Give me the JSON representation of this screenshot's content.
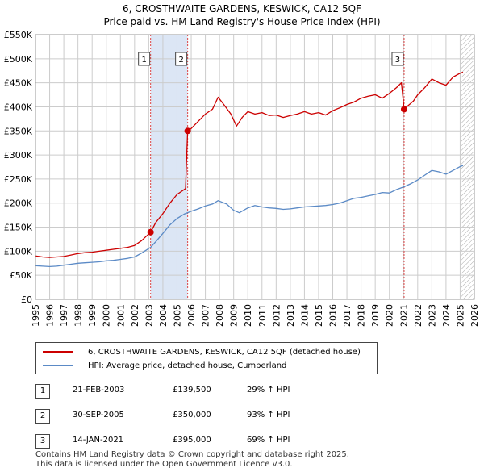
{
  "header": {
    "line1": "6, CROSTHWAITE GARDENS, KESWICK, CA12 5QF",
    "line2": "Price paid vs. HM Land Registry's House Price Index (HPI)"
  },
  "colors": {
    "red": "#cc0000",
    "blue": "#5b8ac6",
    "shade": "#dce6f5",
    "grid": "#cccccc"
  },
  "legend": {
    "red_label": "6, CROSTHWAITE GARDENS, KESWICK, CA12 5QF (detached house)",
    "blue_label": "HPI: Average price, detached house, Cumberland"
  },
  "transactions": [
    {
      "num": "1",
      "date": "21-FEB-2003",
      "price": "£139,500",
      "hpi": "29% ↑ HPI"
    },
    {
      "num": "2",
      "date": "30-SEP-2005",
      "price": "£350,000",
      "hpi": "93% ↑ HPI"
    },
    {
      "num": "3",
      "date": "14-JAN-2021",
      "price": "£395,000",
      "hpi": "69% ↑ HPI"
    }
  ],
  "footer": {
    "line1": "Contains HM Land Registry data © Crown copyright and database right 2025.",
    "line2": "This data is licensed under the Open Government Licence v3.0."
  },
  "chart_data": {
    "type": "line",
    "title": "Price paid vs. HM Land Registry's House Price Index (HPI)",
    "xlim": [
      1995,
      2026
    ],
    "ylim": [
      0,
      550000
    ],
    "x_ticks": [
      1995,
      1996,
      1997,
      1998,
      1999,
      2000,
      2001,
      2002,
      2003,
      2004,
      2005,
      2006,
      2007,
      2008,
      2009,
      2010,
      2011,
      2012,
      2013,
      2014,
      2015,
      2016,
      2017,
      2018,
      2019,
      2020,
      2021,
      2022,
      2023,
      2024,
      2025,
      2026
    ],
    "y_ticks": [
      {
        "value": 0,
        "label": "£0"
      },
      {
        "value": 50000,
        "label": "£50K"
      },
      {
        "value": 100000,
        "label": "£100K"
      },
      {
        "value": 150000,
        "label": "£150K"
      },
      {
        "value": 200000,
        "label": "£200K"
      },
      {
        "value": 250000,
        "label": "£250K"
      },
      {
        "value": 300000,
        "label": "£300K"
      },
      {
        "value": 350000,
        "label": "£350K"
      },
      {
        "value": 400000,
        "label": "£400K"
      },
      {
        "value": 450000,
        "label": "£450K"
      },
      {
        "value": 500000,
        "label": "£500K"
      },
      {
        "value": 550000,
        "label": "£550K"
      }
    ],
    "shaded_periods": [
      [
        2003.13,
        2005.75
      ]
    ],
    "hatched_period": [
      2025.0,
      2026
    ],
    "sale_markers": [
      {
        "label": "1",
        "x": 2003.13,
        "y": 139500
      },
      {
        "label": "2",
        "x": 2005.75,
        "y": 350000
      },
      {
        "label": "3",
        "x": 2021.04,
        "y": 395000
      }
    ],
    "series": [
      {
        "name": "6, CROSTHWAITE GARDENS, KESWICK, CA12 5QF (detached house)",
        "color": "#cc0000",
        "points": [
          [
            1995.0,
            90000
          ],
          [
            1995.5,
            88000
          ],
          [
            1996.0,
            87000
          ],
          [
            1996.5,
            88000
          ],
          [
            1997.0,
            89000
          ],
          [
            1997.5,
            92000
          ],
          [
            1998.0,
            95000
          ],
          [
            1998.5,
            97000
          ],
          [
            1999.0,
            98000
          ],
          [
            1999.5,
            100000
          ],
          [
            2000.0,
            102000
          ],
          [
            2000.5,
            104000
          ],
          [
            2001.0,
            106000
          ],
          [
            2001.5,
            108000
          ],
          [
            2002.0,
            112000
          ],
          [
            2002.5,
            122000
          ],
          [
            2003.13,
            139500
          ],
          [
            2003.5,
            160000
          ],
          [
            2004.0,
            178000
          ],
          [
            2004.5,
            200000
          ],
          [
            2005.0,
            218000
          ],
          [
            2005.6,
            230000
          ],
          [
            2005.75,
            350000
          ],
          [
            2006.0,
            355000
          ],
          [
            2006.5,
            370000
          ],
          [
            2007.0,
            385000
          ],
          [
            2007.5,
            395000
          ],
          [
            2007.9,
            420000
          ],
          [
            2008.3,
            405000
          ],
          [
            2008.8,
            385000
          ],
          [
            2009.2,
            360000
          ],
          [
            2009.6,
            378000
          ],
          [
            2010.0,
            390000
          ],
          [
            2010.5,
            385000
          ],
          [
            2011.0,
            388000
          ],
          [
            2011.5,
            382000
          ],
          [
            2012.0,
            383000
          ],
          [
            2012.5,
            378000
          ],
          [
            2013.0,
            382000
          ],
          [
            2013.5,
            385000
          ],
          [
            2014.0,
            390000
          ],
          [
            2014.5,
            385000
          ],
          [
            2015.0,
            388000
          ],
          [
            2015.5,
            383000
          ],
          [
            2016.0,
            392000
          ],
          [
            2016.5,
            398000
          ],
          [
            2017.0,
            405000
          ],
          [
            2017.5,
            410000
          ],
          [
            2018.0,
            418000
          ],
          [
            2018.5,
            422000
          ],
          [
            2019.0,
            425000
          ],
          [
            2019.5,
            418000
          ],
          [
            2020.0,
            428000
          ],
          [
            2020.5,
            440000
          ],
          [
            2020.85,
            450000
          ],
          [
            2021.04,
            395000
          ],
          [
            2021.3,
            402000
          ],
          [
            2021.7,
            412000
          ],
          [
            2022.0,
            425000
          ],
          [
            2022.5,
            440000
          ],
          [
            2023.0,
            458000
          ],
          [
            2023.5,
            450000
          ],
          [
            2024.0,
            445000
          ],
          [
            2024.5,
            462000
          ],
          [
            2025.0,
            470000
          ],
          [
            2025.2,
            472000
          ]
        ]
      },
      {
        "name": "HPI: Average price, detached house, Cumberland",
        "color": "#5b8ac6",
        "points": [
          [
            1995.0,
            70000
          ],
          [
            1995.5,
            69000
          ],
          [
            1996.0,
            68000
          ],
          [
            1996.5,
            69000
          ],
          [
            1997.0,
            71000
          ],
          [
            1997.5,
            73000
          ],
          [
            1998.0,
            75000
          ],
          [
            1998.5,
            76000
          ],
          [
            1999.0,
            77000
          ],
          [
            1999.5,
            78000
          ],
          [
            2000.0,
            80000
          ],
          [
            2000.5,
            81000
          ],
          [
            2001.0,
            83000
          ],
          [
            2001.5,
            85000
          ],
          [
            2002.0,
            88000
          ],
          [
            2002.5,
            96000
          ],
          [
            2003.13,
            108000
          ],
          [
            2003.5,
            120000
          ],
          [
            2004.0,
            137000
          ],
          [
            2004.5,
            155000
          ],
          [
            2005.0,
            168000
          ],
          [
            2005.5,
            177000
          ],
          [
            2006.0,
            183000
          ],
          [
            2006.5,
            188000
          ],
          [
            2007.0,
            194000
          ],
          [
            2007.5,
            198000
          ],
          [
            2007.9,
            205000
          ],
          [
            2008.5,
            198000
          ],
          [
            2009.0,
            185000
          ],
          [
            2009.4,
            180000
          ],
          [
            2010.0,
            190000
          ],
          [
            2010.5,
            195000
          ],
          [
            2011.0,
            192000
          ],
          [
            2011.5,
            190000
          ],
          [
            2012.0,
            189000
          ],
          [
            2012.5,
            187000
          ],
          [
            2013.0,
            188000
          ],
          [
            2013.5,
            190000
          ],
          [
            2014.0,
            192000
          ],
          [
            2014.5,
            193000
          ],
          [
            2015.0,
            194000
          ],
          [
            2015.5,
            195000
          ],
          [
            2016.0,
            197000
          ],
          [
            2016.5,
            200000
          ],
          [
            2017.0,
            205000
          ],
          [
            2017.5,
            210000
          ],
          [
            2018.0,
            212000
          ],
          [
            2018.5,
            215000
          ],
          [
            2019.0,
            218000
          ],
          [
            2019.5,
            222000
          ],
          [
            2020.0,
            221000
          ],
          [
            2020.5,
            228000
          ],
          [
            2021.04,
            234000
          ],
          [
            2021.5,
            240000
          ],
          [
            2022.0,
            248000
          ],
          [
            2022.5,
            258000
          ],
          [
            2023.0,
            268000
          ],
          [
            2023.5,
            265000
          ],
          [
            2024.0,
            260000
          ],
          [
            2024.5,
            268000
          ],
          [
            2025.0,
            276000
          ],
          [
            2025.2,
            278000
          ]
        ]
      }
    ]
  }
}
